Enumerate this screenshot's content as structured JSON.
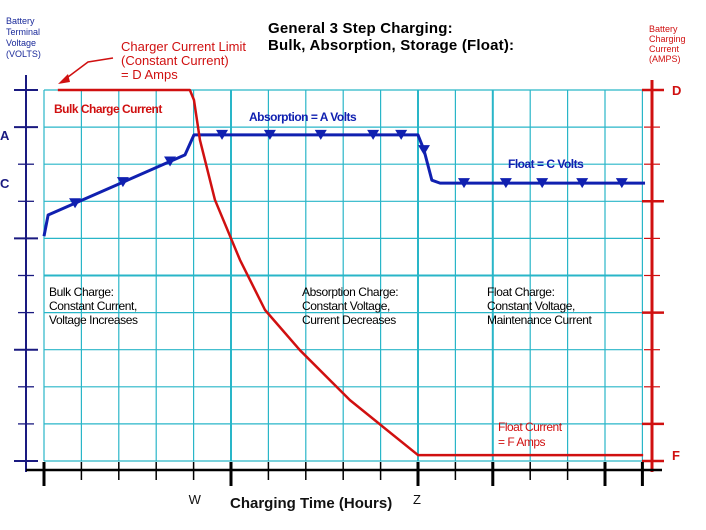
{
  "title_lines": [
    "General 3 Step Charging:",
    "Bulk, Absorption, Storage (Float):"
  ],
  "left_axis_label": [
    "Battery",
    "Terminal",
    "Voltage",
    "(VOLTS)"
  ],
  "right_axis_label": [
    "Battery",
    "Charging",
    "Current",
    "(AMPS)"
  ],
  "charger_limit_label": [
    "Charger Current Limit",
    "(Constant Current)",
    "= D Amps"
  ],
  "annotations": {
    "bulk_current": "Bulk Charge Current",
    "absorption_volts": "Absorption = A Volts",
    "float_volts": "Float = C Volts",
    "float_current": [
      "Float Current",
      "= F Amps"
    ]
  },
  "phases": {
    "bulk": [
      "Bulk Charge:",
      "Constant Current,",
      "Voltage Increases"
    ],
    "absorption": [
      "Absorption Charge:",
      "Constant Voltage,",
      "Current Decreases"
    ],
    "float": [
      "Float Charge:",
      "Constant Voltage,",
      "Maintenance Current"
    ]
  },
  "colors": {
    "voltage": "#1020b0",
    "current": "#d01010",
    "grid": "#29b6c8",
    "axis": "#000000"
  },
  "chart_data": {
    "type": "line",
    "title": "General 3 Step Charging: Bulk, Absorption, Storage (Float):",
    "xlabel": "Charging Time (Hours)",
    "ylabel_left": "Battery Terminal Voltage (VOLTS)",
    "ylabel_right": "Battery Charging Current (AMPS)",
    "x_tick_labels": [
      {
        "at": 4,
        "label": "W"
      },
      {
        "at": 10,
        "label": "Z"
      }
    ],
    "left_tick_labels": [
      {
        "at": 8.79,
        "label": "A"
      },
      {
        "at": 7.49,
        "label": "C"
      }
    ],
    "right_tick_labels": [
      {
        "at": 10,
        "label": "D"
      },
      {
        "at": 0.16,
        "label": "F"
      }
    ],
    "xlim": [
      0,
      16
    ],
    "ylim": [
      0,
      10
    ],
    "grid": true,
    "series": [
      {
        "axis": "left",
        "marker": "triangle-down",
        "x": [
          0,
          0.11,
          3.77,
          4.01,
          10,
          10.16,
          10.37,
          10.59,
          16.07
        ],
        "y": [
          6.06,
          6.63,
          8.25,
          8.79,
          8.79,
          8.38,
          7.57,
          7.49,
          7.49
        ],
        "markers_x": [
          0.83,
          2.11,
          3.37,
          4.76,
          6.04,
          7.4,
          8.8,
          9.55,
          10.16,
          11.23,
          12.35,
          13.32,
          14.39,
          15.45
        ]
      },
      {
        "axis": "right",
        "x": [
          0.37,
          3.9,
          4.01,
          4.17,
          4.57,
          5.24,
          5.91,
          6.84,
          8.18,
          10,
          16.02
        ],
        "y": [
          10,
          10,
          9.73,
          8.65,
          7.04,
          5.42,
          4.07,
          2.99,
          1.64,
          0.16,
          0.16
        ]
      }
    ]
  }
}
